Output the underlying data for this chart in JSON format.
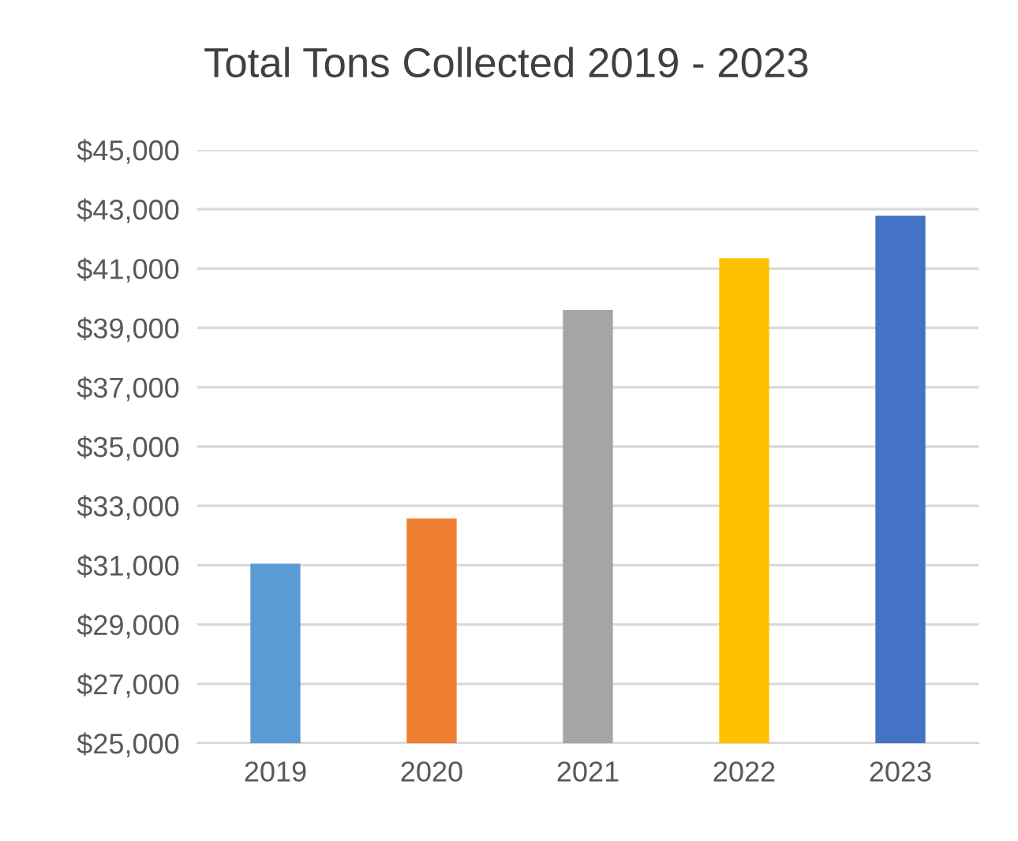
{
  "chart_data": {
    "type": "bar",
    "title": "Total Tons Collected 2019 - 2023",
    "categories": [
      "2019",
      "2020",
      "2021",
      "2022",
      "2023"
    ],
    "values": [
      31050,
      32570,
      39600,
      41350,
      42780
    ],
    "colors": [
      "#5b9bd5",
      "#ed7d31",
      "#a5a5a5",
      "#ffc000",
      "#4472c4"
    ],
    "ylim": [
      25000,
      45000
    ],
    "yticks": [
      {
        "value": 25000,
        "label": "$25,000"
      },
      {
        "value": 27000,
        "label": "$27,000"
      },
      {
        "value": 29000,
        "label": "$29,000"
      },
      {
        "value": 31000,
        "label": "$31,000"
      },
      {
        "value": 33000,
        "label": "$33,000"
      },
      {
        "value": 35000,
        "label": "$35,000"
      },
      {
        "value": 37000,
        "label": "$37,000"
      },
      {
        "value": 39000,
        "label": "$39,000"
      },
      {
        "value": 41000,
        "label": "$41,000"
      },
      {
        "value": 43000,
        "label": "$43,000"
      },
      {
        "value": 45000,
        "label": "$45,000"
      }
    ],
    "grid": "y"
  }
}
